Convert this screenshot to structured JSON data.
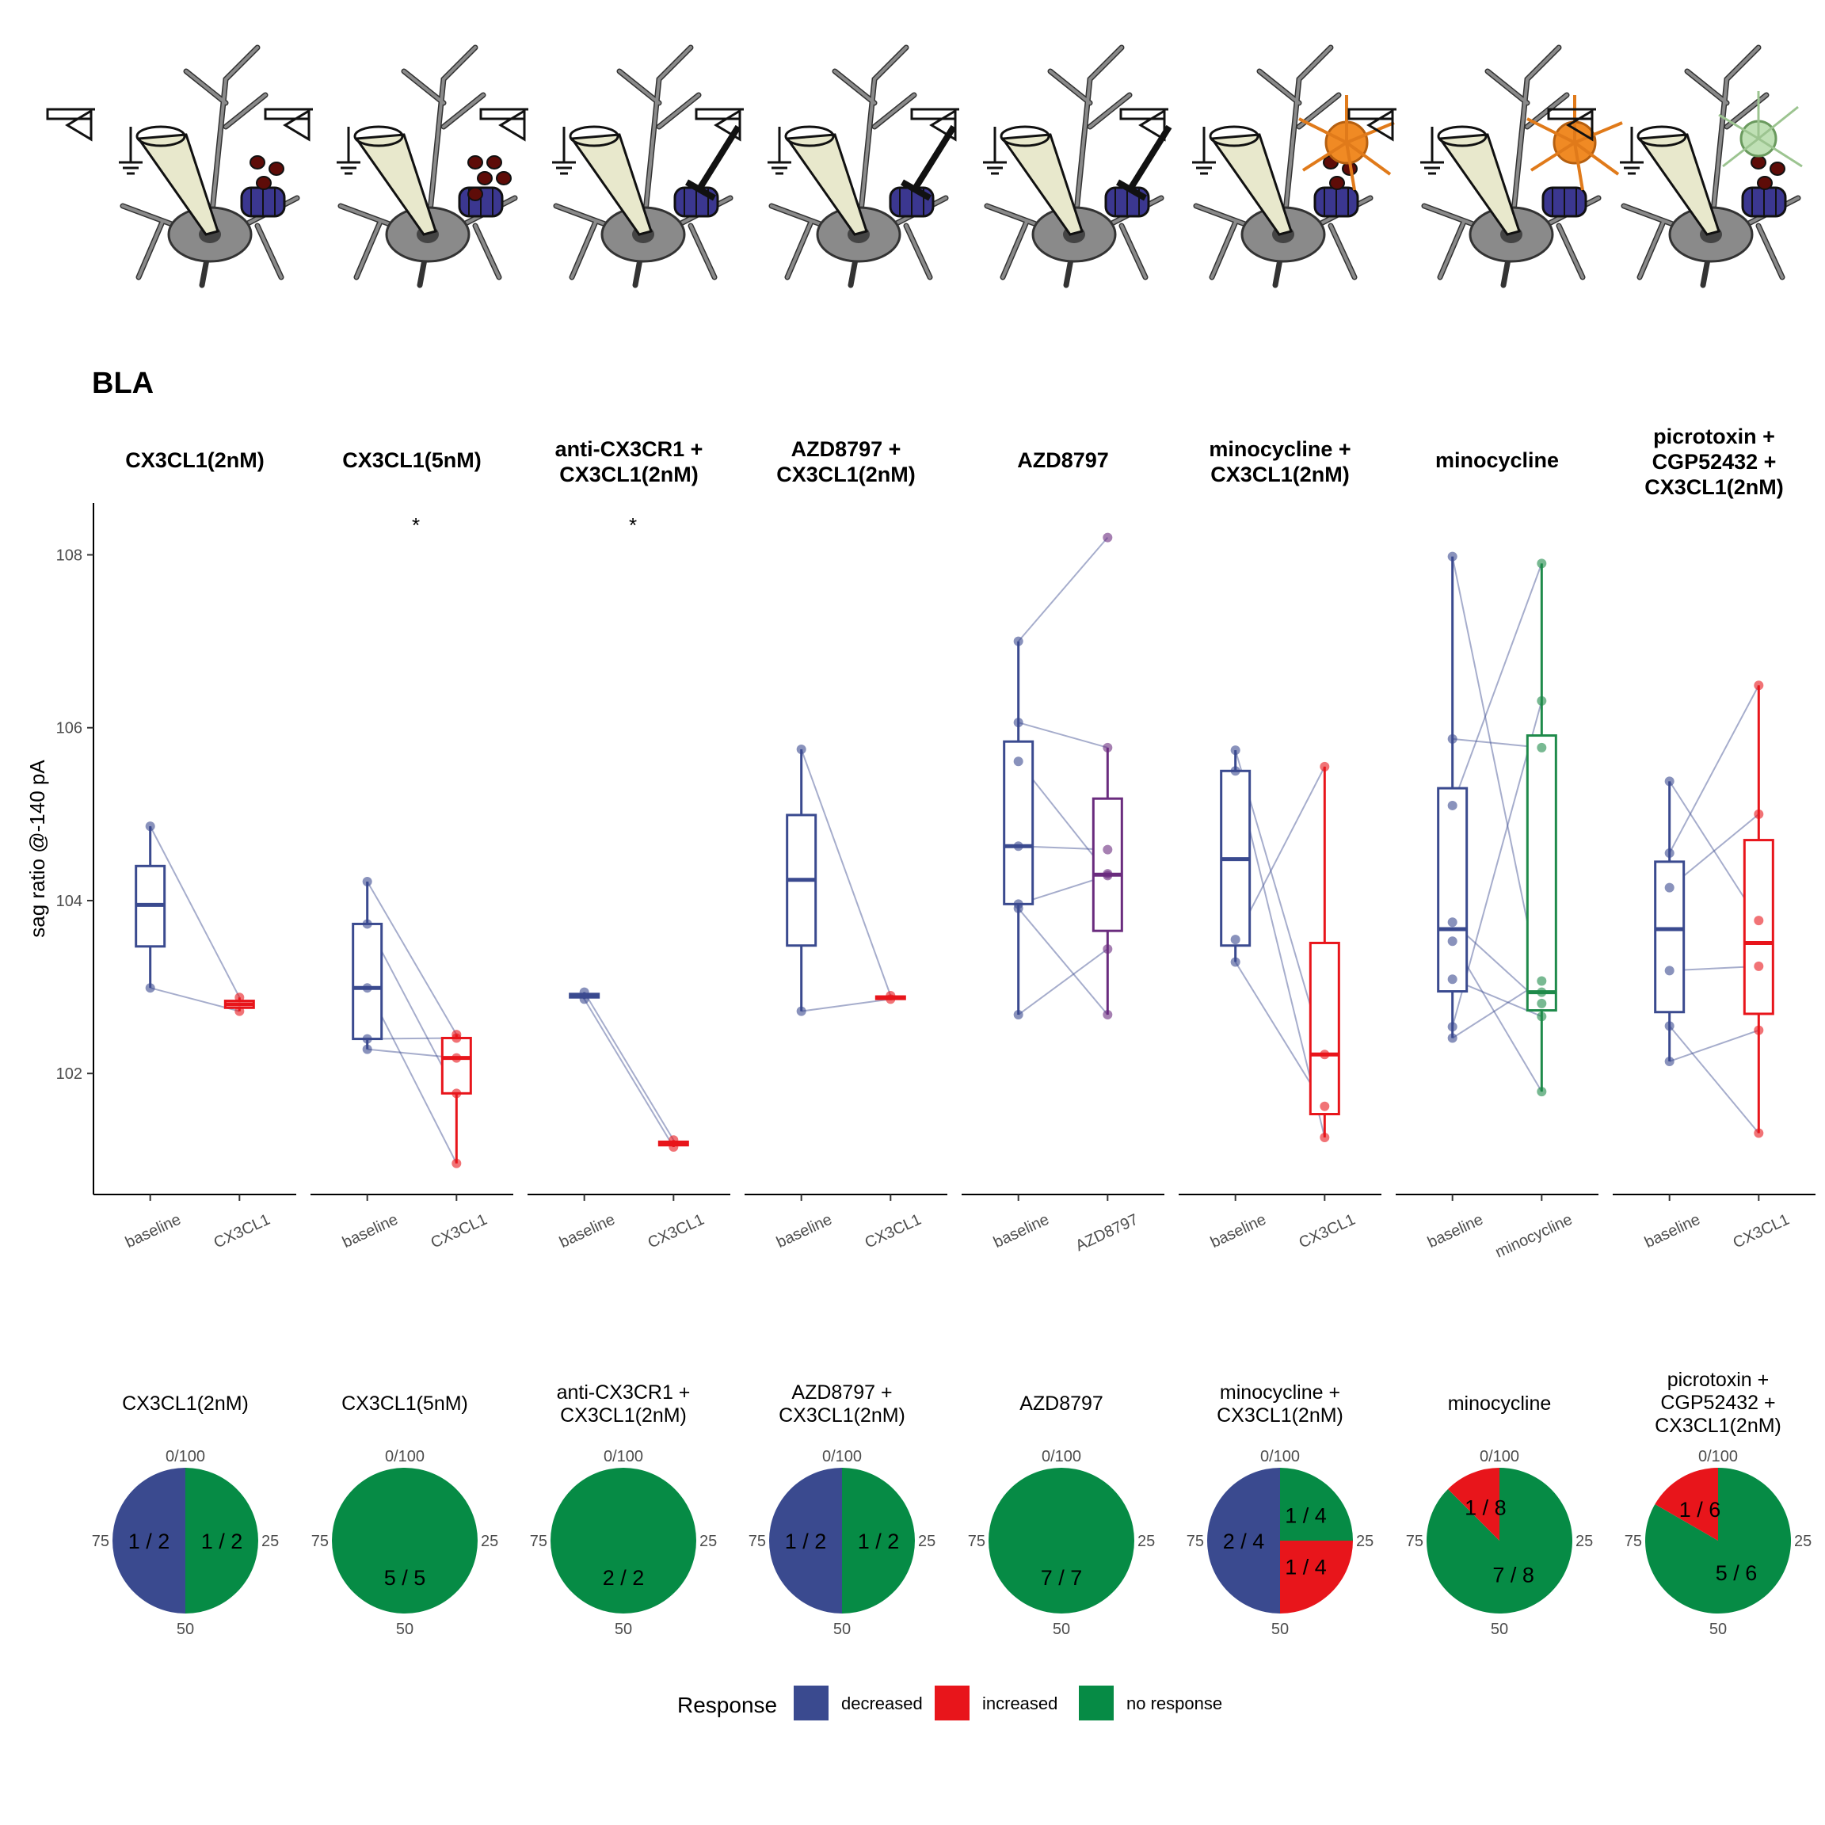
{
  "panel_label": "BLA",
  "y_axis_title": "sag ratio @-140 pA",
  "y_ticks": [
    102,
    104,
    106,
    108
  ],
  "y_range": [
    100.6,
    108.6
  ],
  "colors": {
    "decreased": "#3a4a8f",
    "increased": "#e8151b",
    "no_response": "#068b45",
    "purple": "#6a2c7e",
    "green_box": "#1e8a4a"
  },
  "chart_data": {
    "type": "box",
    "y_range": [
      100.6,
      108.6
    ],
    "conditions": [
      {
        "title": "CX3CL1(2nM)",
        "x_labels": [
          "baseline",
          "CX3CL1"
        ],
        "box_colors": [
          "#3a4a8f",
          "#e8151b"
        ],
        "signif": "",
        "box_a": [
          102.99,
          103.47,
          103.95,
          104.4,
          104.86
        ],
        "box_b": [
          102.72,
          102.76,
          102.8,
          102.84,
          102.88
        ],
        "pairs": [
          [
            104.86,
            102.88
          ],
          [
            102.99,
            102.72
          ]
        ]
      },
      {
        "title": "CX3CL1(5nM)",
        "x_labels": [
          "baseline",
          "CX3CL1"
        ],
        "box_colors": [
          "#3a4a8f",
          "#e8151b"
        ],
        "signif": "*",
        "box_a": [
          102.28,
          102.4,
          102.99,
          103.73,
          104.22
        ],
        "box_b": [
          100.96,
          101.77,
          102.18,
          102.41,
          102.45
        ],
        "pairs": [
          [
            104.22,
            102.45
          ],
          [
            103.73,
            101.77
          ],
          [
            102.99,
            100.96
          ],
          [
            102.4,
            102.41
          ],
          [
            102.28,
            102.18
          ]
        ]
      },
      {
        "title": "anti-CX3CR1 + CX3CL1(2nM)",
        "x_labels": [
          "baseline",
          "CX3CL1"
        ],
        "box_colors": [
          "#3a4a8f",
          "#e8151b"
        ],
        "signif": "*",
        "box_a": [
          102.86,
          102.88,
          102.9,
          102.92,
          102.94
        ],
        "box_b": [
          101.15,
          101.17,
          101.19,
          101.21,
          101.23
        ],
        "pairs": [
          [
            102.94,
            101.23
          ],
          [
            102.86,
            101.15
          ]
        ]
      },
      {
        "title": "AZD8797 + CX3CL1(2nM)",
        "x_labels": [
          "baseline",
          "CX3CL1"
        ],
        "box_colors": [
          "#3a4a8f",
          "#e8151b"
        ],
        "signif": "",
        "box_a": [
          102.72,
          103.48,
          104.24,
          104.99,
          105.75
        ],
        "box_b": [
          102.86,
          102.87,
          102.88,
          102.89,
          102.9
        ],
        "pairs": [
          [
            105.75,
            102.9
          ],
          [
            102.72,
            102.86
          ]
        ]
      },
      {
        "title": "AZD8797",
        "x_labels": [
          "baseline",
          "AZD8797"
        ],
        "box_colors": [
          "#3a4a8f",
          "#6a2c7e"
        ],
        "signif": "",
        "box_a": [
          102.68,
          103.96,
          104.63,
          105.84,
          107.0
        ],
        "box_b": [
          102.68,
          103.65,
          104.3,
          105.18,
          105.77
        ],
        "pairs": [
          [
            107.0,
            108.2
          ],
          [
            106.06,
            105.77
          ],
          [
            105.61,
            104.31
          ],
          [
            104.63,
            104.59
          ],
          [
            103.96,
            104.29
          ],
          [
            103.91,
            102.68
          ],
          [
            102.68,
            103.44
          ]
        ]
      },
      {
        "title": "minocycline + CX3CL1(2nM)",
        "x_labels": [
          "baseline",
          "CX3CL1"
        ],
        "box_colors": [
          "#3a4a8f",
          "#e8151b"
        ],
        "signif": "",
        "box_a": [
          103.29,
          103.48,
          104.48,
          105.5,
          105.74
        ],
        "box_b": [
          101.26,
          101.53,
          102.22,
          103.51,
          105.55
        ],
        "pairs": [
          [
            105.74,
            102.22
          ],
          [
            105.5,
            101.26
          ],
          [
            103.55,
            105.55
          ],
          [
            103.29,
            101.62
          ]
        ]
      },
      {
        "title": "minocycline",
        "x_labels": [
          "baseline",
          "minocycline"
        ],
        "box_colors": [
          "#3a4a8f",
          "#1e8a4a"
        ],
        "signif": "",
        "box_a": [
          102.41,
          102.95,
          103.67,
          105.3,
          107.98
        ],
        "box_b": [
          101.79,
          102.73,
          102.94,
          105.91,
          107.9
        ],
        "pairs": [
          [
            107.98,
            102.94
          ],
          [
            105.87,
            105.77
          ],
          [
            105.1,
            107.9
          ],
          [
            103.75,
            102.81
          ],
          [
            103.53,
            101.79
          ],
          [
            103.09,
            102.66
          ],
          [
            102.54,
            106.31
          ],
          [
            102.41,
            103.07
          ]
        ]
      },
      {
        "title": "picrotoxin + CGP52432 + CX3CL1(2nM)",
        "x_labels": [
          "baseline",
          "CX3CL1"
        ],
        "box_colors": [
          "#3a4a8f",
          "#e8151b"
        ],
        "signif": "",
        "box_a": [
          102.14,
          102.71,
          103.67,
          104.45,
          105.38
        ],
        "box_b": [
          101.31,
          102.69,
          103.51,
          104.7,
          106.49
        ],
        "pairs": [
          [
            105.38,
            103.77
          ],
          [
            104.55,
            106.49
          ],
          [
            104.15,
            105.0
          ],
          [
            103.19,
            103.24
          ],
          [
            102.55,
            101.31
          ],
          [
            102.14,
            102.5
          ]
        ]
      }
    ],
    "pies": [
      {
        "title": "CX3CL1(2nM)",
        "slices": [
          {
            "response": "no response",
            "label": "1 / 2",
            "frac": 0.5
          },
          {
            "response": "decreased",
            "label": "1 / 2",
            "frac": 0.5
          }
        ]
      },
      {
        "title": "CX3CL1(5nM)",
        "slices": [
          {
            "response": "no response",
            "label": "5 / 5",
            "frac": 1.0
          }
        ]
      },
      {
        "title": "anti-CX3CR1 + CX3CL1(2nM)",
        "slices": [
          {
            "response": "no response",
            "label": "2 / 2",
            "frac": 1.0
          }
        ]
      },
      {
        "title": "AZD8797 + CX3CL1(2nM)",
        "slices": [
          {
            "response": "no response",
            "label": "1 / 2",
            "frac": 0.5
          },
          {
            "response": "decreased",
            "label": "1 / 2",
            "frac": 0.5
          }
        ]
      },
      {
        "title": "AZD8797",
        "slices": [
          {
            "response": "no response",
            "label": "7 / 7",
            "frac": 1.0
          }
        ]
      },
      {
        "title": "minocycline + CX3CL1(2nM)",
        "slices": [
          {
            "response": "no response",
            "label": "1 / 4",
            "frac": 0.25
          },
          {
            "response": "increased",
            "label": "1 / 4",
            "frac": 0.25
          },
          {
            "response": "decreased",
            "label": "2 / 4",
            "frac": 0.5
          }
        ]
      },
      {
        "title": "minocycline",
        "slices": [
          {
            "response": "no response",
            "label": "7 / 8",
            "frac": 0.875
          },
          {
            "response": "increased",
            "label": "1 / 8",
            "frac": 0.125
          }
        ]
      },
      {
        "title": "picrotoxin + CGP52432 + CX3CL1(2nM)",
        "slices": [
          {
            "response": "no response",
            "label": "5 / 6",
            "frac": 0.8333
          },
          {
            "response": "increased",
            "label": "1 / 6",
            "frac": 0.1667
          }
        ]
      }
    ],
    "pie_ticks": [
      "0/100",
      "25",
      "50",
      "75"
    ],
    "legend": {
      "title": "Response",
      "items": [
        {
          "key": "decreased",
          "label": "decreased"
        },
        {
          "key": "increased",
          "label": "increased"
        },
        {
          "key": "no_response",
          "label": "no response"
        }
      ]
    }
  }
}
